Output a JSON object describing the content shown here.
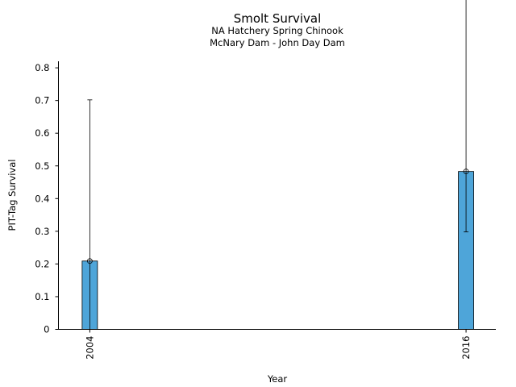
{
  "chart_data": {
    "type": "bar",
    "title": "Smolt Survival",
    "subtitle_lines": [
      "NA Hatchery Spring Chinook",
      "McNary Dam - John Day Dam"
    ],
    "xlabel": "Year",
    "ylabel": "PIT-Tag Survival",
    "categories": [
      "2004",
      "2016"
    ],
    "x": [
      2004,
      2016
    ],
    "xlim": [
      2003.0,
      2016.95
    ],
    "series": [
      {
        "values": [
          0.209,
          0.483
        ],
        "err_low": [
          0.209,
          0.185
        ],
        "err_high": [
          0.493,
          0.781
        ],
        "color": "#4ea5d9"
      }
    ],
    "ylim": [
      0,
      0.82
    ],
    "yticks": [
      "0",
      "0.1",
      "0.2",
      "0.3",
      "0.4",
      "0.5",
      "0.6",
      "0.7",
      "0.8"
    ],
    "grid": false,
    "legend": "none"
  }
}
